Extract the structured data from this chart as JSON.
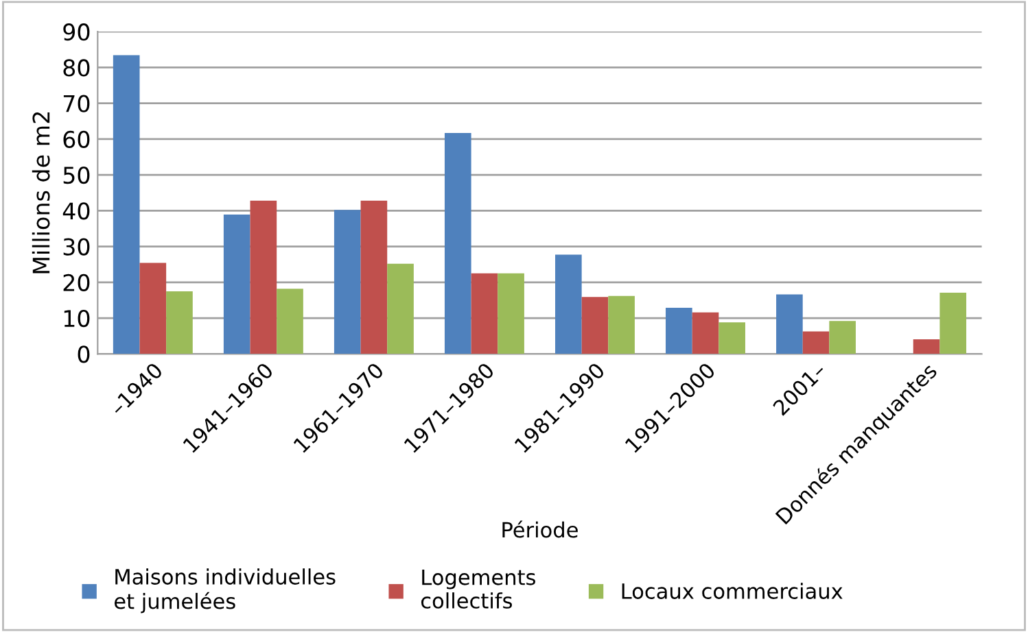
{
  "chart_data": {
    "type": "bar",
    "xlabel": "Période",
    "ylabel": "Millions de m2",
    "categories": [
      "–1940",
      "1941–1960",
      "1961–1970",
      "1971–1980",
      "1981–1990",
      "1991–2000",
      "2001–",
      "Donnés manquantes"
    ],
    "series": [
      {
        "name": "Maisons individuelles\net jumelées",
        "color": "#4f81bd",
        "values": [
          83.4,
          38.9,
          40.2,
          61.7,
          27.7,
          12.9,
          16.6,
          null
        ]
      },
      {
        "name": "Logements\ncollectifs",
        "color": "#c0504d",
        "values": [
          25.4,
          42.8,
          42.8,
          22.5,
          15.9,
          11.6,
          6.3,
          4.1
        ]
      },
      {
        "name": "Locaux commerciaux",
        "color": "#9bbb59",
        "values": [
          17.5,
          18.2,
          25.2,
          22.5,
          16.2,
          8.8,
          9.2,
          17.1
        ]
      }
    ],
    "ylim": [
      0,
      90
    ],
    "yticks": [
      0,
      10,
      20,
      30,
      40,
      50,
      60,
      70,
      80,
      90
    ],
    "grid": "y",
    "legend": "bottom"
  }
}
